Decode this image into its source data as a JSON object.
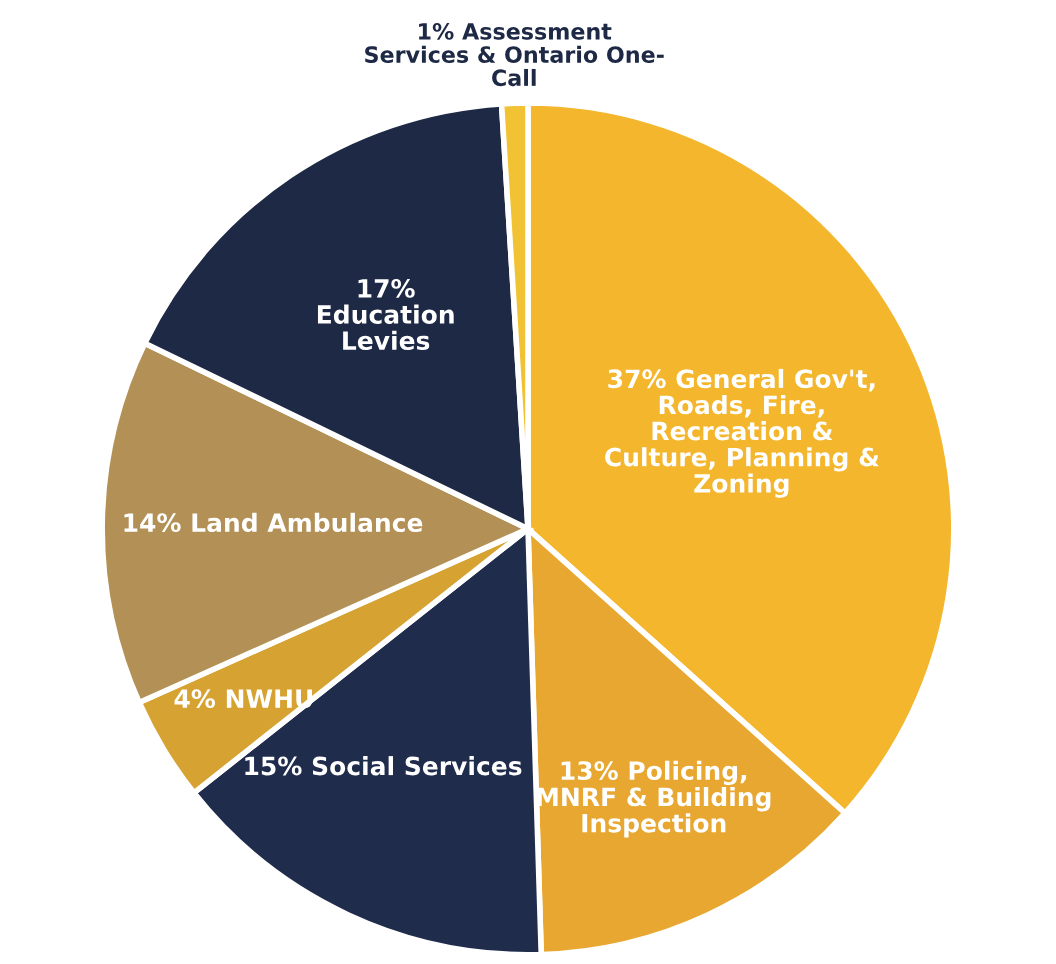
{
  "chart_data": {
    "type": "pie",
    "categories": [
      "37% General Gov't,\nRoads, Fire,\nRecreation &\nCulture, Planning &\nZoning",
      "13% Policing,\nMNRF & Building\nInspection",
      "15% Social Services",
      "4% NWHU",
      "14% Land Ambulance",
      "17%\nEducation\nLevies",
      "1% Assessment\nServices & Ontario One-\nCall"
    ],
    "values": [
      37,
      13,
      15,
      4,
      14,
      17,
      1
    ],
    "colors": [
      "#f4b62c",
      "#e8a730",
      "#1f2c4c",
      "#d6a232",
      "#b39156",
      "#1d2945",
      "#f2c235"
    ]
  }
}
